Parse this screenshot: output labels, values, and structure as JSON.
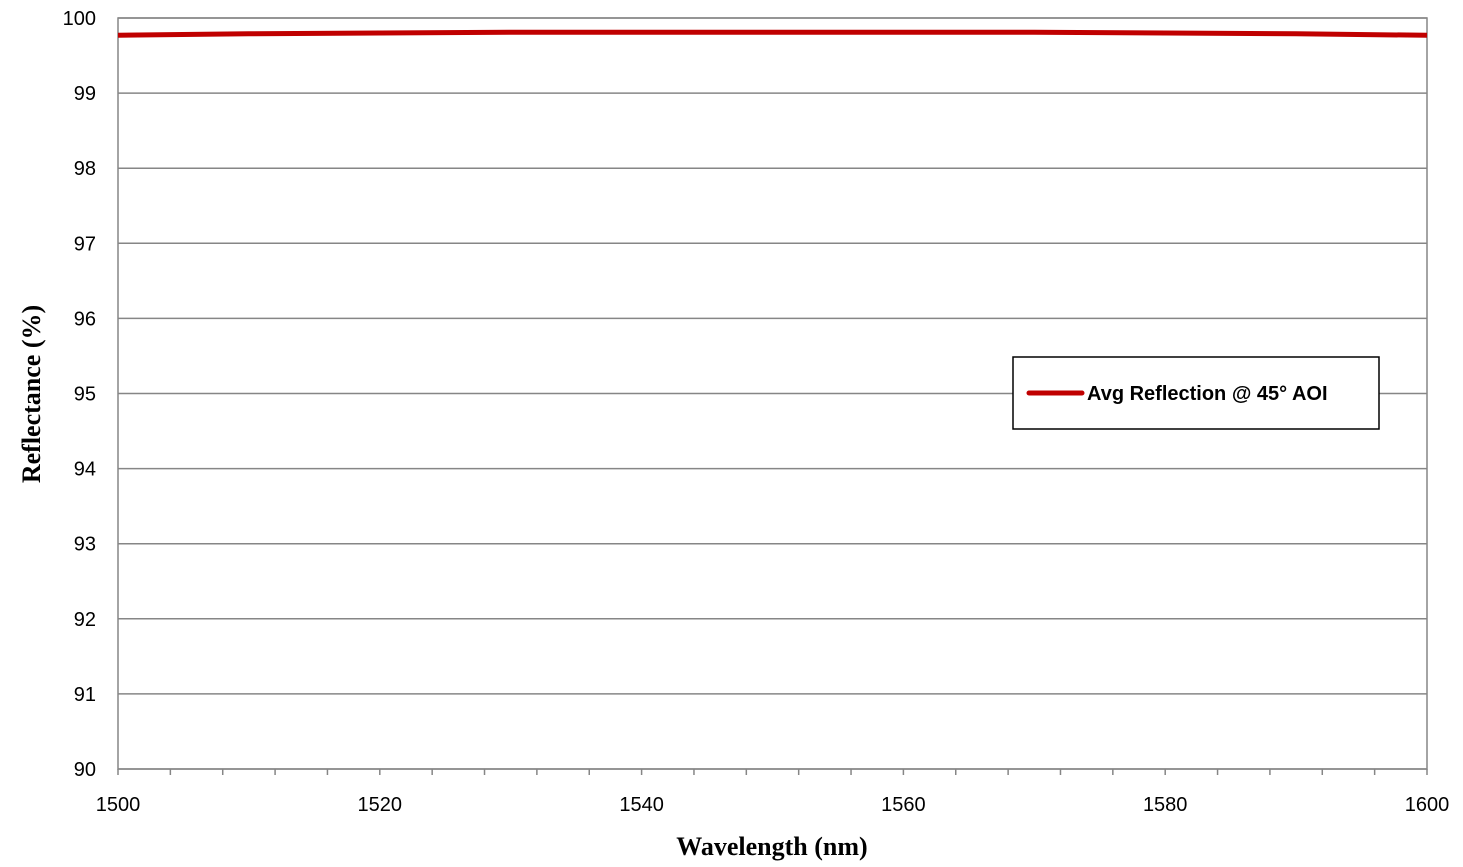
{
  "chart_data": {
    "type": "line",
    "title": "",
    "xlabel": "Wavelength (nm)",
    "ylabel": "Reflectance (%)",
    "xlim": [
      1500,
      1600
    ],
    "ylim": [
      90,
      100
    ],
    "x_ticks": [
      1500,
      1520,
      1540,
      1560,
      1580,
      1600
    ],
    "y_ticks": [
      90,
      91,
      92,
      93,
      94,
      95,
      96,
      97,
      98,
      99,
      100
    ],
    "grid": "horizontal",
    "legend_position": "center-right",
    "series": [
      {
        "name": "Avg Reflection @  45° AOI",
        "color": "#c00000",
        "x": [
          1500,
          1510,
          1520,
          1530,
          1540,
          1550,
          1560,
          1570,
          1580,
          1590,
          1600
        ],
        "y": [
          99.77,
          99.79,
          99.8,
          99.81,
          99.81,
          99.81,
          99.81,
          99.81,
          99.8,
          99.79,
          99.77
        ]
      }
    ]
  }
}
